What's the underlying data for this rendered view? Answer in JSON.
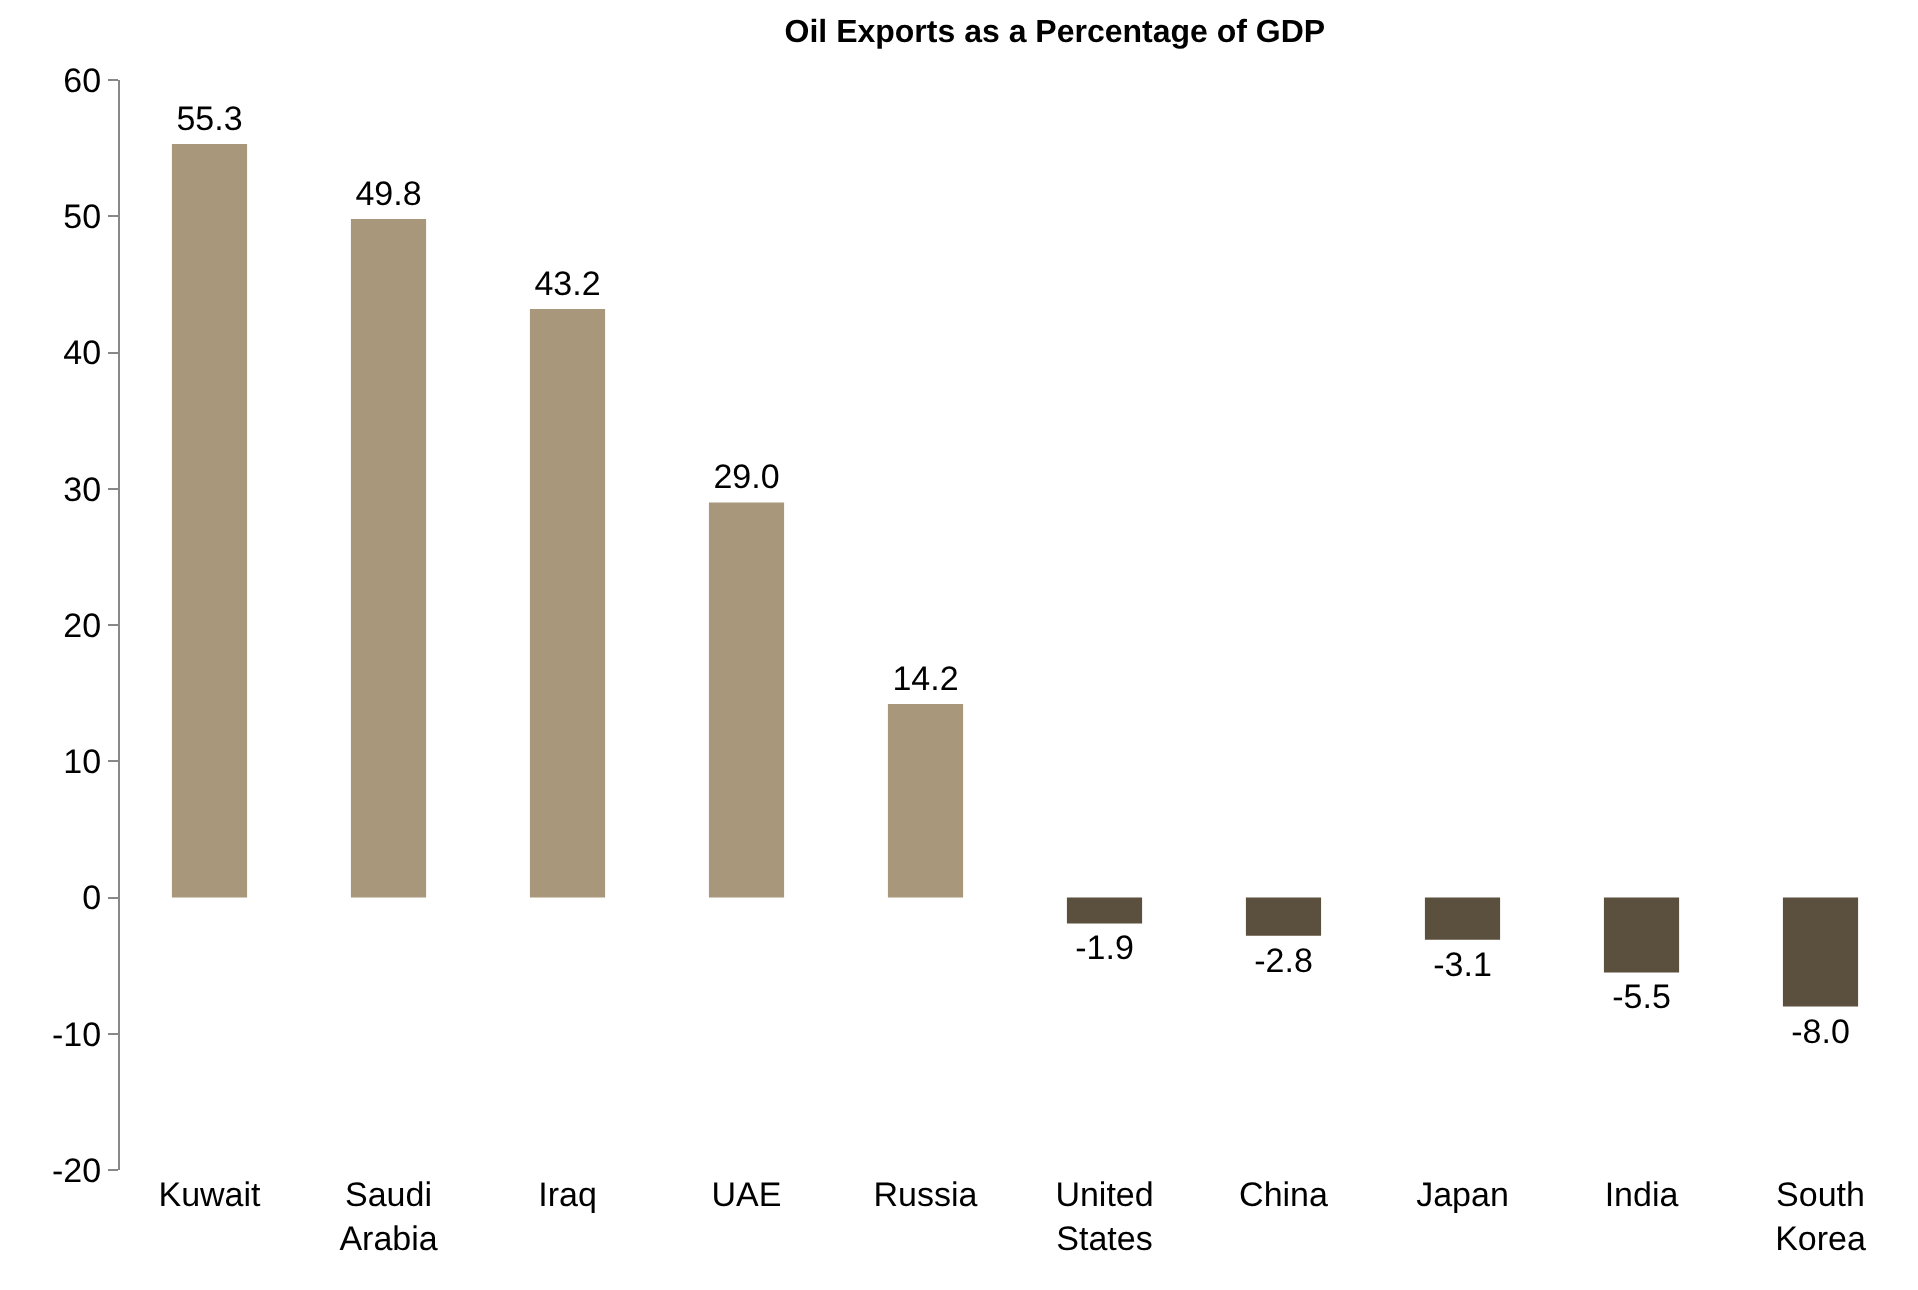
{
  "chart_data": {
    "type": "bar",
    "title": "Oil Exports as a Percentage of GDP",
    "categories": [
      "Kuwait",
      "Saudi Arabia",
      "Iraq",
      "UAE",
      "Russia",
      "United States",
      "China",
      "Japan",
      "India",
      "South Korea"
    ],
    "values": [
      55.3,
      49.8,
      43.2,
      29.0,
      14.2,
      -1.9,
      -2.8,
      -3.1,
      -5.5,
      -8.0
    ],
    "value_labels": [
      "55.3",
      "49.8",
      "43.2",
      "29.0",
      "14.2",
      "-1.9",
      "-2.8",
      "-3.1",
      "-5.5",
      "-8.0"
    ],
    "colors": [
      "#a8977b",
      "#a8977b",
      "#a8977b",
      "#a8977b",
      "#a8977b",
      "#5b4f3d",
      "#5b4f3d",
      "#5b4f3d",
      "#5b4f3d",
      "#5b4f3d"
    ],
    "ylim": [
      -20,
      60
    ],
    "yticks": [
      -20,
      -10,
      0,
      10,
      20,
      30,
      40,
      50,
      60
    ],
    "grid": false,
    "legend": false
  }
}
